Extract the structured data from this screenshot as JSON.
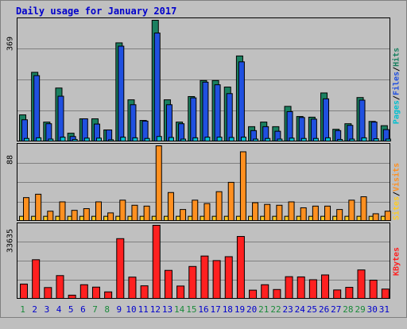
{
  "title": "Daily usage for January 2017",
  "colors": {
    "pages": "#00bfcf",
    "files": "#2050e0",
    "hits": "#1a8060",
    "visits": "#ff9020",
    "sites": "#ffcc20",
    "kbytes": "#ff2020",
    "weekend_day": "#1a8a3a",
    "weekday": "#0000cc"
  },
  "right_labels": {
    "pages": "Pages",
    "files": "Files",
    "hits": "Hits",
    "sites": "Sites",
    "visits": "Visits",
    "kbytes": "KBytes",
    "sep": "/"
  },
  "chart_data": [
    {
      "type": "bar",
      "name": "hits-files-pages",
      "ymax_label": "369",
      "ylim": [
        0,
        369
      ],
      "categories": [
        "1",
        "2",
        "3",
        "4",
        "5",
        "6",
        "7",
        "8",
        "9",
        "10",
        "11",
        "12",
        "13",
        "14",
        "15",
        "16",
        "17",
        "18",
        "19",
        "20",
        "21",
        "22",
        "23",
        "24",
        "25",
        "26",
        "27",
        "28",
        "29",
        "30",
        "31"
      ],
      "weekend_days": [
        "1",
        "7",
        "8",
        "14",
        "15",
        "21",
        "22",
        "28",
        "29"
      ],
      "series": [
        {
          "name": "Hits",
          "values": [
            80,
            210,
            58,
            162,
            24,
            68,
            68,
            34,
            300,
            126,
            63,
            369,
            126,
            58,
            136,
            185,
            185,
            165,
            260,
            44,
            58,
            44,
            106,
            75,
            73,
            147,
            36,
            53,
            133,
            60,
            47
          ]
        },
        {
          "name": "Files",
          "values": [
            65,
            200,
            53,
            137,
            14,
            68,
            52,
            34,
            290,
            111,
            61,
            330,
            111,
            53,
            132,
            180,
            172,
            145,
            242,
            32,
            44,
            30,
            90,
            72,
            67,
            129,
            32,
            48,
            125,
            58,
            35
          ]
        },
        {
          "name": "Pages",
          "values": [
            8,
            10,
            6,
            12,
            5,
            9,
            9,
            4,
            12,
            10,
            8,
            14,
            11,
            6,
            10,
            12,
            12,
            11,
            12,
            6,
            8,
            6,
            9,
            8,
            8,
            10,
            5,
            6,
            10,
            7,
            6
          ]
        }
      ]
    },
    {
      "type": "bar",
      "name": "visits-sites",
      "ymax_label": "88",
      "ylim": [
        0,
        88
      ],
      "categories": [
        "1",
        "2",
        "3",
        "4",
        "5",
        "6",
        "7",
        "8",
        "9",
        "10",
        "11",
        "12",
        "13",
        "14",
        "15",
        "16",
        "17",
        "18",
        "19",
        "20",
        "21",
        "22",
        "23",
        "24",
        "25",
        "26",
        "27",
        "28",
        "29",
        "30",
        "31"
      ],
      "series": [
        {
          "name": "Visits",
          "values": [
            27,
            31,
            11,
            22,
            12,
            14,
            22,
            9,
            24,
            18,
            17,
            88,
            33,
            13,
            24,
            20,
            34,
            45,
            81,
            21,
            19,
            18,
            22,
            15,
            17,
            17,
            13,
            24,
            28,
            8,
            11
          ]
        },
        {
          "name": "Sites",
          "values": [
            5,
            5,
            5,
            5,
            5,
            5,
            5,
            5,
            5,
            5,
            5,
            5,
            5,
            5,
            5,
            5,
            5,
            5,
            5,
            5,
            5,
            5,
            5,
            5,
            5,
            5,
            5,
            5,
            5,
            5,
            5
          ]
        }
      ]
    },
    {
      "type": "bar",
      "name": "kbytes",
      "ymax_label": "33635",
      "ylim": [
        0,
        33635
      ],
      "categories": [
        "1",
        "2",
        "3",
        "4",
        "5",
        "6",
        "7",
        "8",
        "9",
        "10",
        "11",
        "12",
        "13",
        "14",
        "15",
        "16",
        "17",
        "18",
        "19",
        "20",
        "21",
        "22",
        "23",
        "24",
        "25",
        "26",
        "27",
        "28",
        "29",
        "30",
        "31"
      ],
      "series": [
        {
          "name": "KBytes",
          "values": [
            6600,
            17800,
            5000,
            10500,
            1500,
            6300,
            5200,
            3000,
            27500,
            9800,
            5800,
            33635,
            12900,
            5700,
            14700,
            19500,
            17400,
            19200,
            28500,
            3800,
            6300,
            4100,
            10000,
            9900,
            8600,
            10800,
            3900,
            5100,
            13100,
            8400,
            4300
          ]
        }
      ]
    }
  ]
}
